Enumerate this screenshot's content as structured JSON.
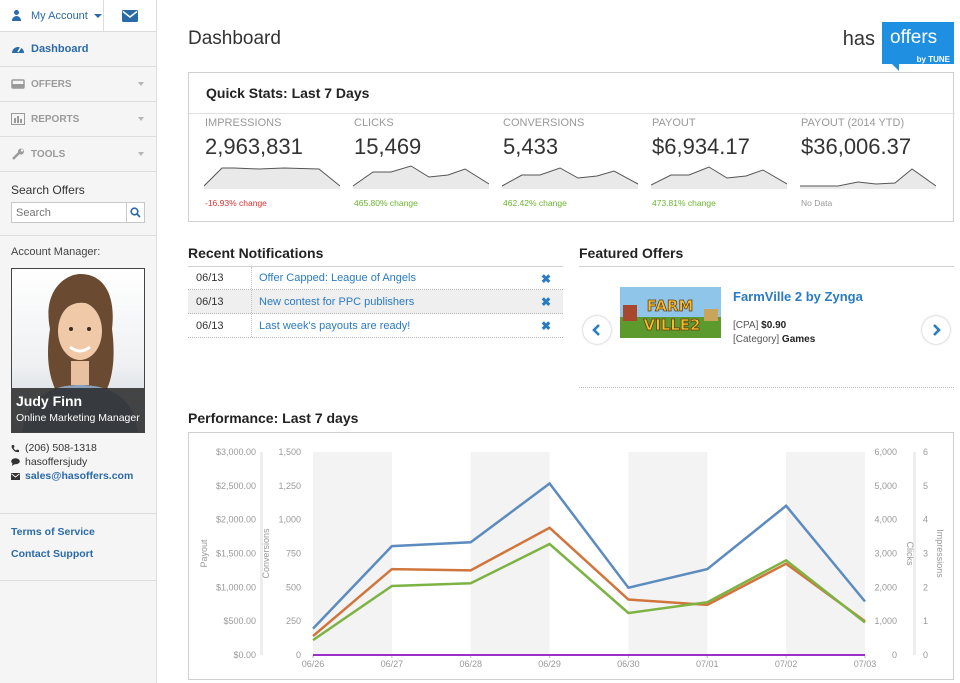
{
  "account": {
    "label": "My Account"
  },
  "nav": [
    {
      "label": "Dashboard",
      "icon": "dashboard-icon",
      "active": true
    },
    {
      "label": "OFFERS",
      "icon": "offers-icon"
    },
    {
      "label": "REPORTS",
      "icon": "reports-icon"
    },
    {
      "label": "TOOLS",
      "icon": "wrench-icon"
    }
  ],
  "search": {
    "label": "Search Offers",
    "placeholder": "Search"
  },
  "account_manager": {
    "label": "Account Manager:",
    "name": "Judy Finn",
    "role": "Online Marketing Manager",
    "phone": "(206) 508-1318",
    "chat": "hasoffersjudy",
    "email": "sales@hasoffers.com"
  },
  "footer_links": [
    "Terms of Service",
    "Contact Support"
  ],
  "page_title": "Dashboard",
  "logo": {
    "has": "has",
    "offers": "offers",
    "by": "by TUNE"
  },
  "quick_stats": {
    "title": "Quick Stats: Last 7 Days",
    "items": [
      {
        "label": "IMPRESSIONS",
        "value": "2,963,831",
        "change": "-16.93% change",
        "color": "#e03030"
      },
      {
        "label": "CLICKS",
        "value": "15,469",
        "change": "465.80% change",
        "color": "#6bb52e"
      },
      {
        "label": "CONVERSIONS",
        "value": "5,433",
        "change": "462.42% change",
        "color": "#6bb52e"
      },
      {
        "label": "PAYOUT",
        "value": "$6,934.17",
        "change": "473.81% change",
        "color": "#6bb52e"
      },
      {
        "label": "PAYOUT (2014 YTD)",
        "value": "$36,006.37",
        "change": "No Data",
        "color": "#999999"
      }
    ]
  },
  "notifications": {
    "title": "Recent Notifications",
    "rows": [
      {
        "date": "06/13",
        "text": "Offer Capped: League of Angels"
      },
      {
        "date": "06/13",
        "text": "New contest for PPC publishers"
      },
      {
        "date": "06/13",
        "text": "Last week's payouts are ready!"
      }
    ]
  },
  "featured": {
    "title": "Featured Offers",
    "name": "FarmVille 2 by Zynga",
    "type_label": "[CPA]",
    "price": "$0.90",
    "category_label": "[Category]",
    "category": "Games",
    "thumb_line1": "FARM",
    "thumb_line2": "VILLE2"
  },
  "performance": {
    "title": "Performance: Last 7 days"
  },
  "chart_data": {
    "type": "line",
    "x": [
      "06/26",
      "06/27",
      "06/28",
      "06/29",
      "06/30",
      "07/01",
      "07/02",
      "07/03"
    ],
    "axes": {
      "payout": {
        "label": "Payout",
        "ticks": [
          "$0.00",
          "$500.00",
          "$1,000.00",
          "$1,500.00",
          "$2,000.00",
          "$2,500.00",
          "$3,000.00"
        ],
        "ylim": [
          0,
          3000
        ]
      },
      "conversions": {
        "label": "Conversions",
        "ticks": [
          "0",
          "250",
          "500",
          "750",
          "1,000",
          "1,250",
          "1,500"
        ],
        "ylim": [
          0,
          1500
        ]
      },
      "clicks": {
        "label": "Clicks",
        "ticks": [
          "0",
          "1,000",
          "2,000",
          "3,000",
          "4,000",
          "5,000",
          "6,000"
        ],
        "ylim": [
          0,
          6000
        ]
      },
      "impressions": {
        "label": "Impressions",
        "ticks": [
          "0",
          "1",
          "2",
          "3",
          "4",
          "5",
          "6"
        ],
        "ylim": [
          0,
          6
        ]
      }
    },
    "series": [
      {
        "axis": "clicks",
        "color": "#5b8bbf",
        "values": [
          780,
          3220,
          3330,
          5070,
          1990,
          2540,
          4410,
          1580
        ]
      },
      {
        "axis": "payout",
        "color": "#d0753b",
        "values": [
          280,
          1270,
          1250,
          1880,
          820,
          740,
          1350,
          500
        ]
      },
      {
        "axis": "conversions",
        "color": "#7cb342",
        "values": [
          110,
          510,
          530,
          820,
          310,
          390,
          700,
          240
        ]
      },
      {
        "axis": "impressions",
        "color": "#9b30c8",
        "values": [
          0,
          0,
          0,
          0,
          0,
          0,
          0,
          0
        ]
      }
    ],
    "grid": true
  }
}
